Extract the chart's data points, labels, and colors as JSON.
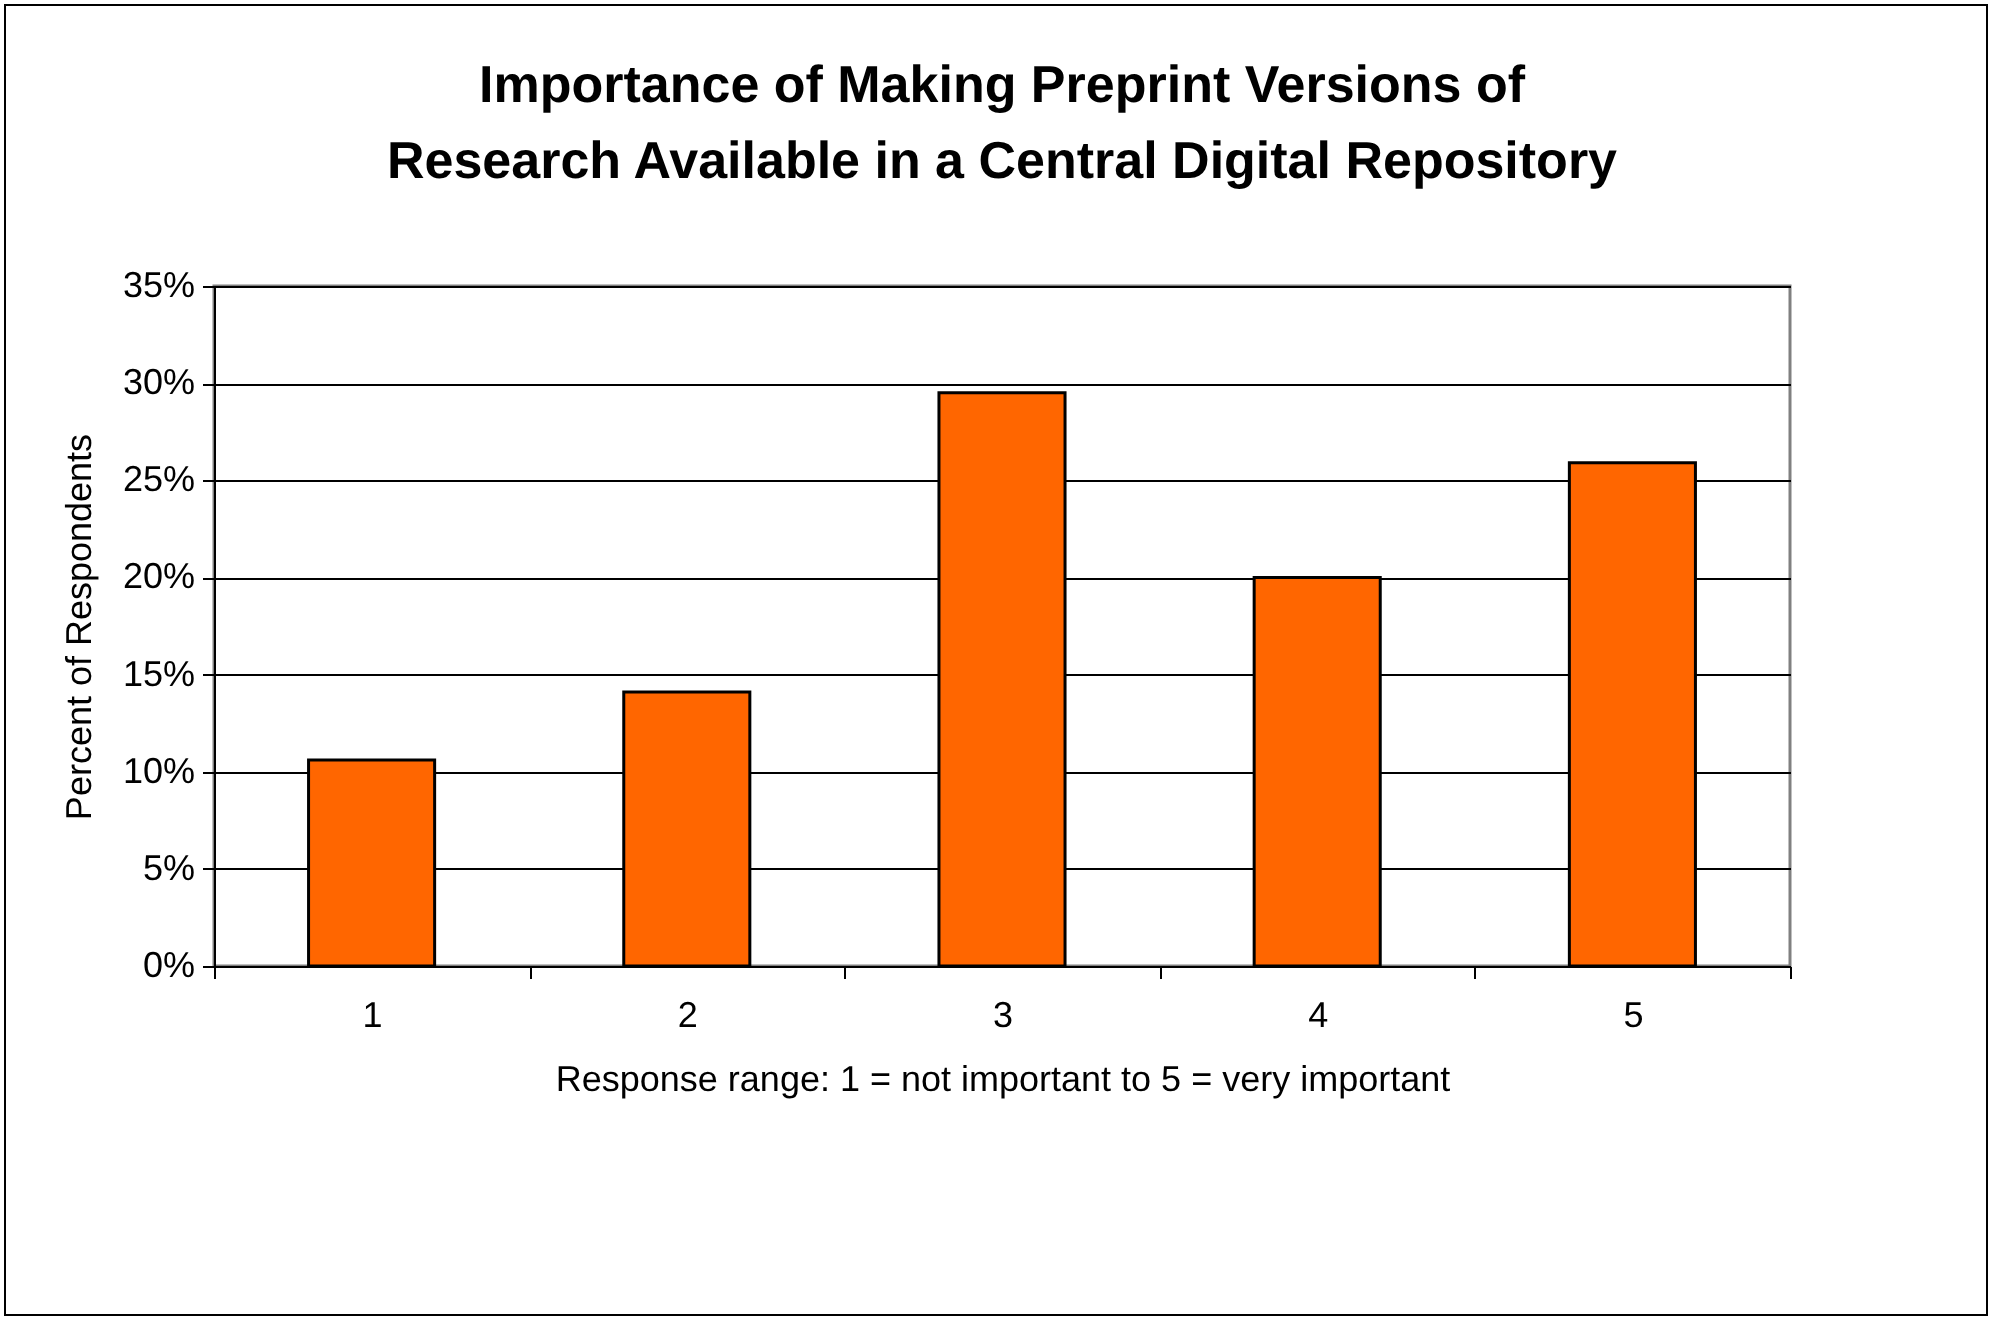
{
  "chart_data": {
    "type": "bar",
    "title": [
      "Importance of Making Preprint Versions of",
      "Research Available in a Central Digital Repository"
    ],
    "xlabel": "Response range:  1 = not important  to  5 = very important",
    "ylabel": "Percent of Respondents",
    "categories": [
      "1",
      "2",
      "3",
      "4",
      "5"
    ],
    "values": [
      10.6,
      14.1,
      29.5,
      20.0,
      25.9
    ],
    "color": "#ff6600",
    "ylim": [
      0,
      35
    ],
    "yticks": [
      {
        "value": 0,
        "label": "0%"
      },
      {
        "value": 5,
        "label": "5%"
      },
      {
        "value": 10,
        "label": "10%"
      },
      {
        "value": 15,
        "label": "15%"
      },
      {
        "value": 20,
        "label": "20%"
      },
      {
        "value": 25,
        "label": "25%"
      },
      {
        "value": 30,
        "label": "30%"
      },
      {
        "value": 35,
        "label": "35%"
      }
    ],
    "grid": "y"
  }
}
